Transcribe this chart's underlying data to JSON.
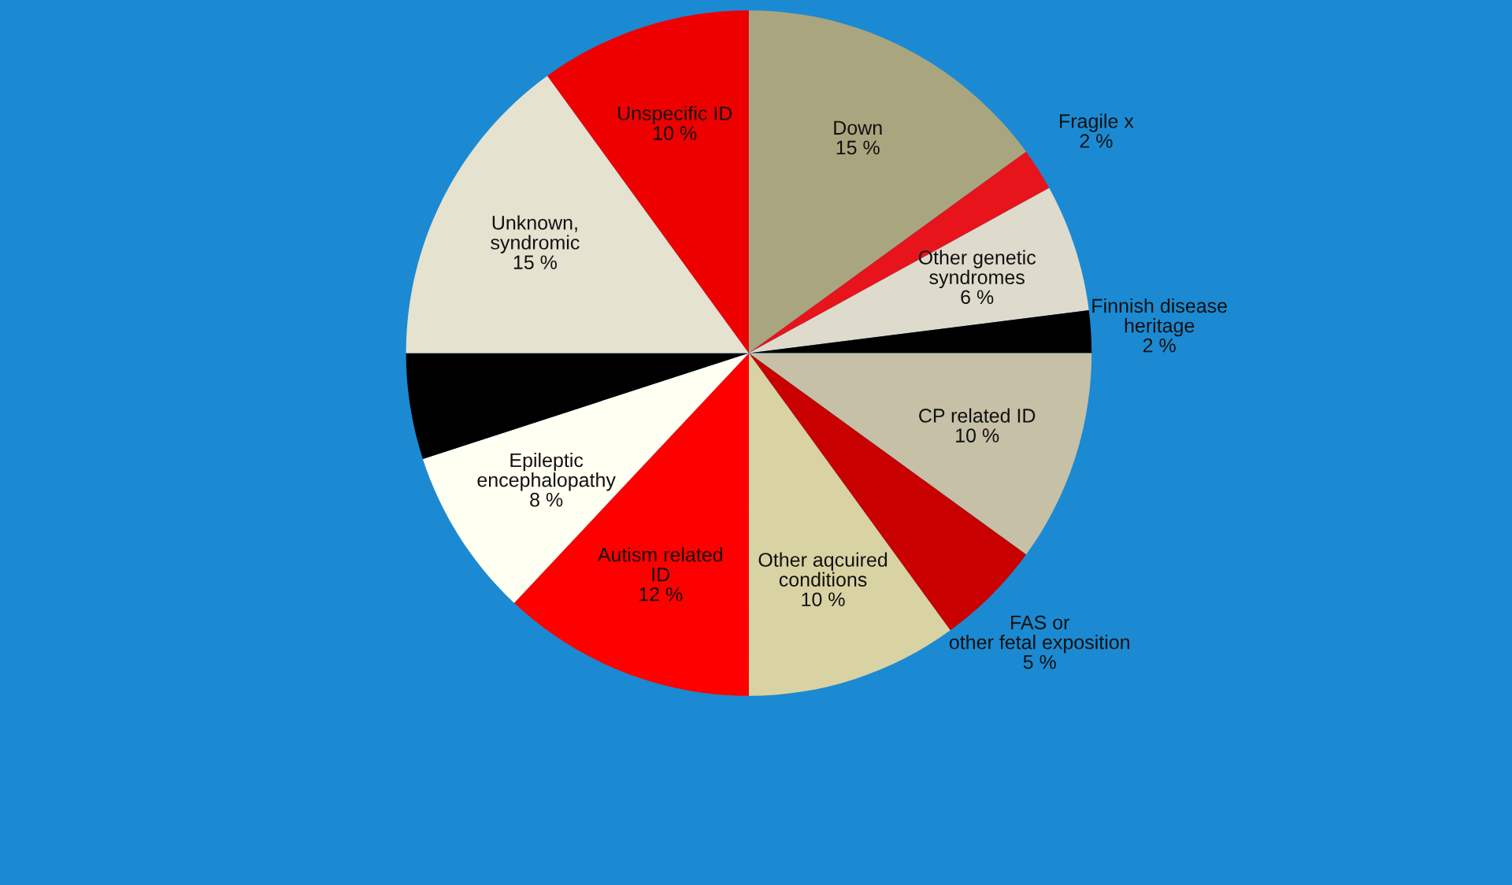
{
  "chart_data": {
    "type": "pie",
    "categories": [
      "Down",
      "Fragile x",
      "Other genetic syndromes",
      "Finnish disease heritage",
      "CP related ID",
      "FAS or other fetal exposition",
      "Other aqcuired conditions",
      "Autism related ID",
      "Epileptic encephalopathy",
      null,
      "Unknown, syndromic",
      "Unspecific ID"
    ],
    "values": [
      15,
      2,
      6,
      2,
      10,
      5,
      10,
      12,
      8,
      5,
      15,
      10
    ],
    "value_labels": [
      "15 %",
      "2 %",
      "6 %",
      "2 %",
      "10 %",
      "5 %",
      "10 %",
      "12 %",
      "8 %",
      null,
      "15 %",
      "10 %"
    ],
    "colors": [
      "#a9a67f",
      "#e8141c",
      "#dedbcc",
      "#000000",
      "#c5c0a6",
      "#c80000",
      "#d9d2a2",
      "#ff0000",
      "#fffff2",
      "#000000",
      "#e6e2d0",
      "#ee0000"
    ]
  }
}
